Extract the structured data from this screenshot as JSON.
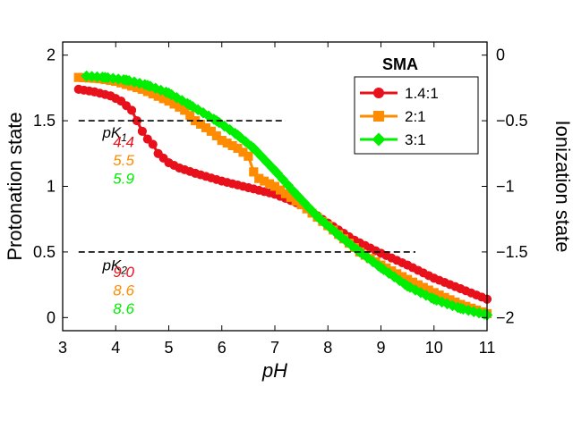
{
  "chart_data": {
    "type": "line",
    "xlabel": "pH",
    "ylabel": "Protonation state",
    "y2label": "Ionization state",
    "xlim": [
      3,
      11
    ],
    "ylim": [
      -0.1,
      2.1
    ],
    "y2lim": [
      -2.1,
      0.1
    ],
    "xticks": [
      3,
      4,
      5,
      6,
      7,
      8,
      9,
      10,
      11
    ],
    "yticks": [
      0,
      0.5,
      1,
      1.5,
      2
    ],
    "yticklabels": [
      "0",
      "0.5",
      "1",
      "1.5",
      "2"
    ],
    "y2ticks": [
      -2,
      -1.5,
      -1,
      -0.5,
      0
    ],
    "y2ticklabels": [
      "−2",
      "−1.5",
      "−1",
      "−0.5",
      "0"
    ],
    "grid": false,
    "legend": {
      "title": "SMA",
      "placement": "top-right"
    },
    "reference_lines": [
      {
        "y": 1.5,
        "x_range": [
          3.3,
          7.2
        ],
        "style": "dashed"
      },
      {
        "y": 0.5,
        "x_range": [
          3.3,
          9.65
        ],
        "style": "dashed"
      }
    ],
    "series": [
      {
        "name": "1.4:1",
        "color": "#e8101a",
        "marker": "circle",
        "x": [
          3.3,
          3.6,
          3.9,
          4.1,
          4.3,
          4.4,
          4.5,
          4.6,
          4.7,
          4.8,
          5.0,
          5.2,
          5.5,
          6.0,
          6.5,
          7.0,
          7.5,
          8.0,
          8.5,
          9.0,
          9.5,
          10.0,
          10.5,
          11.0
        ],
        "y": [
          1.74,
          1.72,
          1.69,
          1.65,
          1.58,
          1.5,
          1.42,
          1.36,
          1.32,
          1.25,
          1.18,
          1.14,
          1.1,
          1.04,
          0.99,
          0.94,
          0.86,
          0.72,
          0.59,
          0.49,
          0.4,
          0.3,
          0.22,
          0.14
        ]
      },
      {
        "name": "2:1",
        "color": "#ff8c00",
        "marker": "square",
        "x": [
          3.3,
          3.7,
          4.0,
          4.5,
          5.0,
          5.3,
          5.5,
          5.8,
          6.0,
          6.3,
          6.5,
          6.6,
          6.7,
          7.0,
          7.5,
          8.0,
          8.3,
          8.6,
          9.0,
          9.5,
          10.0,
          10.5,
          11.0
        ],
        "y": [
          1.83,
          1.82,
          1.8,
          1.74,
          1.65,
          1.58,
          1.5,
          1.42,
          1.35,
          1.29,
          1.23,
          1.11,
          1.06,
          1.0,
          0.86,
          0.7,
          0.6,
          0.5,
          0.4,
          0.29,
          0.19,
          0.1,
          0.03
        ]
      },
      {
        "name": "3:1",
        "color": "#00ee00",
        "marker": "diamond",
        "x": [
          3.45,
          3.8,
          4.2,
          4.6,
          5.0,
          5.4,
          5.9,
          6.3,
          6.6,
          7.0,
          7.4,
          7.8,
          8.2,
          8.6,
          9.0,
          9.5,
          10.0,
          10.5,
          11.0
        ],
        "y": [
          1.84,
          1.83,
          1.81,
          1.77,
          1.71,
          1.62,
          1.5,
          1.39,
          1.29,
          1.12,
          0.94,
          0.77,
          0.63,
          0.5,
          0.38,
          0.24,
          0.14,
          0.07,
          0.02
        ]
      }
    ],
    "annotations": [
      {
        "label": "pK",
        "sub": "1",
        "x": 3.75,
        "y": 1.37,
        "color": "#000000"
      },
      {
        "text": "4.4",
        "x": 3.95,
        "y": 1.3,
        "color": "#e8101a"
      },
      {
        "text": "5.5",
        "x": 3.95,
        "y": 1.16,
        "color": "#ff8c00"
      },
      {
        "text": "5.9",
        "x": 3.95,
        "y": 1.02,
        "color": "#00ee00"
      },
      {
        "label": "pK",
        "sub": "2",
        "x": 3.75,
        "y": 0.36,
        "color": "#000000"
      },
      {
        "text": "9.0",
        "x": 3.95,
        "y": 0.31,
        "color": "#e8101a"
      },
      {
        "text": "8.6",
        "x": 3.95,
        "y": 0.17,
        "color": "#ff8c00"
      },
      {
        "text": "8.6",
        "x": 3.95,
        "y": 0.03,
        "color": "#00ee00"
      }
    ]
  }
}
